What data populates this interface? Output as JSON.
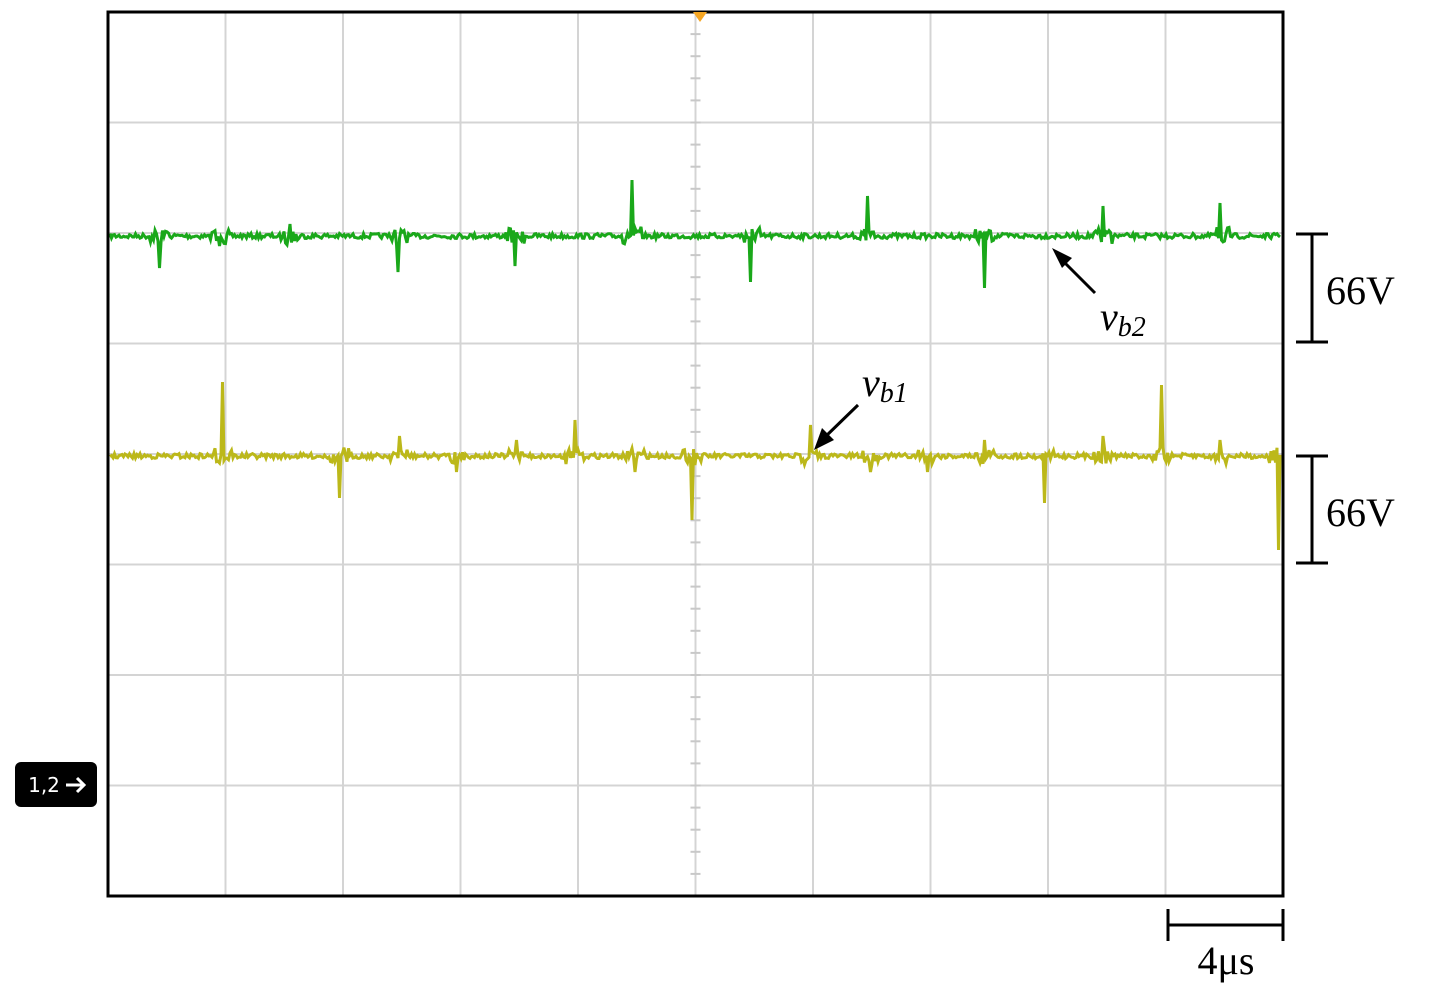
{
  "scale_bars": [
    {
      "label": "66V"
    },
    {
      "label": "66V"
    },
    {
      "label": "4μs"
    }
  ],
  "trace_labels": [
    {
      "symbol": "v",
      "subscript": "b2"
    },
    {
      "symbol": "v",
      "subscript": "b1"
    }
  ],
  "channel_marker": {
    "label": "1,2"
  }
}
